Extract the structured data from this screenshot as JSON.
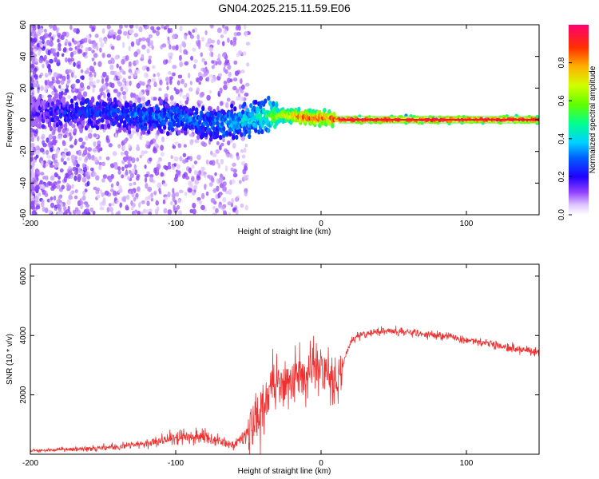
{
  "title": "GN04.2025.215.11.59.E06",
  "chart_data": [
    {
      "type": "heatmap",
      "xlabel": "Height of straight line (km)",
      "ylabel": "Frequency (Hz)",
      "xlim": [
        -200,
        150
      ],
      "ylim": [
        -60,
        60
      ],
      "xticks": [
        -200,
        -100,
        0,
        100
      ],
      "yticks": [
        -60,
        -40,
        -20,
        0,
        20,
        40,
        60
      ],
      "colorbar": {
        "label": "Normalized spectral amplitude",
        "range": [
          0,
          1
        ],
        "ticks": [
          "0.0",
          "0.2",
          "0.4",
          "0.6",
          "0.8"
        ],
        "colors": [
          "#ffffff",
          "#c8a0ff",
          "#7a00ff",
          "#0000ff",
          "#00c8ff",
          "#00ff60",
          "#b0ff00",
          "#ffd000",
          "#ff5000",
          "#ff0060"
        ]
      },
      "ridge": [
        {
          "x": -195,
          "y": 5,
          "amp": 0.15
        },
        {
          "x": -180,
          "y": 4,
          "amp": 0.2
        },
        {
          "x": -160,
          "y": 5,
          "amp": 0.25
        },
        {
          "x": -140,
          "y": 4,
          "amp": 0.25
        },
        {
          "x": -120,
          "y": 2,
          "amp": 0.3
        },
        {
          "x": -100,
          "y": 1,
          "amp": 0.3
        },
        {
          "x": -80,
          "y": -2,
          "amp": 0.3
        },
        {
          "x": -60,
          "y": -2,
          "amp": 0.35
        },
        {
          "x": -40,
          "y": 2,
          "amp": 0.45
        },
        {
          "x": -25,
          "y": 3,
          "amp": 0.7
        },
        {
          "x": -15,
          "y": 2,
          "amp": 0.85
        },
        {
          "x": -5,
          "y": 1,
          "amp": 0.9
        },
        {
          "x": 5,
          "y": 1,
          "amp": 0.85
        },
        {
          "x": 15,
          "y": 0,
          "amp": 0.95
        },
        {
          "x": 50,
          "y": 0,
          "amp": 0.95
        },
        {
          "x": 100,
          "y": 0,
          "amp": 0.95
        },
        {
          "x": 150,
          "y": 0,
          "amp": 0.95
        }
      ],
      "color": "#ff3232"
    },
    {
      "type": "line",
      "xlabel": "Height of straight line (km)",
      "ylabel": "SNR (10 * v/v)",
      "xlim": [
        -200,
        150
      ],
      "ylim": [
        0,
        6400
      ],
      "xticks": [
        -200,
        -100,
        0,
        100
      ],
      "yticks": [
        2000,
        4000,
        6000
      ],
      "series": [
        {
          "color": "#f03030",
          "x": [
            -200,
            -180,
            -160,
            -140,
            -120,
            -100,
            -90,
            -80,
            -70,
            -60,
            -50,
            -40,
            -35,
            -30,
            -25,
            -20,
            -15,
            -10,
            -5,
            0,
            5,
            10,
            15,
            20,
            30,
            40,
            50,
            60,
            70,
            80,
            90,
            100,
            110,
            120,
            130,
            140,
            150
          ],
          "y": [
            120,
            150,
            200,
            260,
            350,
            550,
            650,
            600,
            450,
            300,
            700,
            1500,
            2200,
            2500,
            2300,
            2400,
            2600,
            2700,
            2900,
            2800,
            2600,
            2300,
            3000,
            3800,
            4050,
            4150,
            4150,
            4100,
            4050,
            4000,
            3950,
            3850,
            3800,
            3700,
            3600,
            3500,
            3450
          ]
        }
      ]
    }
  ]
}
